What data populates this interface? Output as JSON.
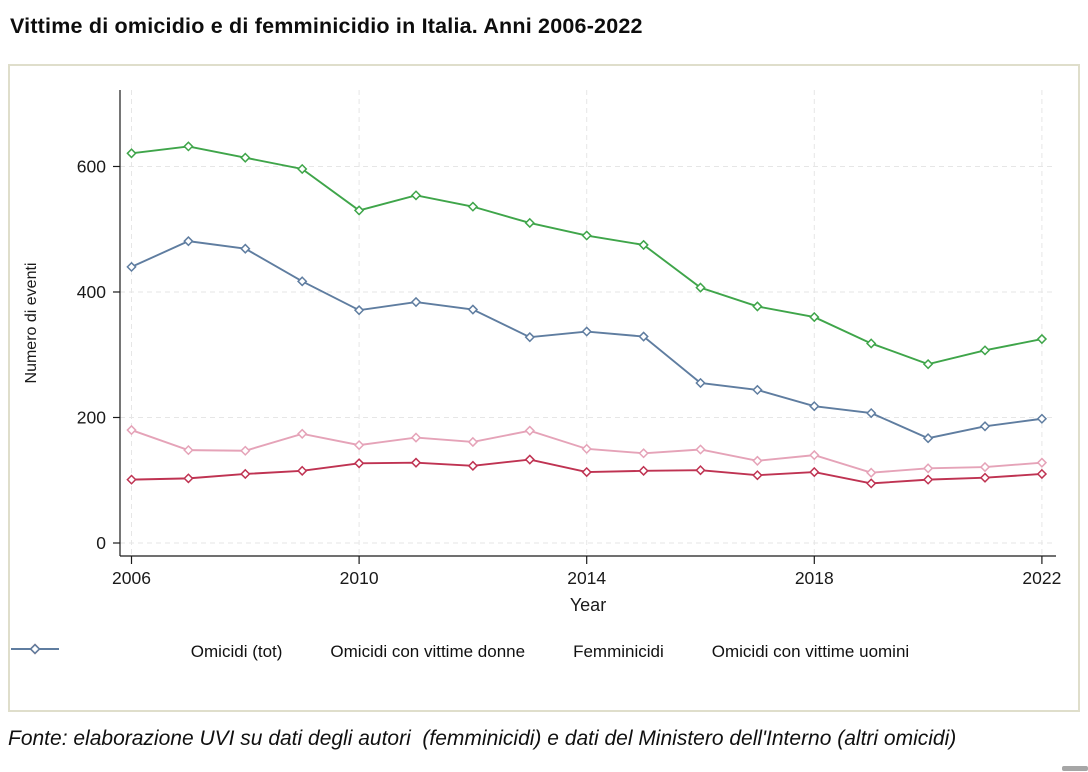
{
  "page": {
    "title": "Vittime di omicidio e di femminicidio in Italia. Anni 2006-2022",
    "footer": "Fonte: elaborazione UVI su dati degli autori  (femminicidi) e dati del Ministero dell'Interno (altri omicidi)"
  },
  "chart_data": {
    "type": "line",
    "title": "Vittime di omicidio e di femminicidio in Italia. Anni 2006-2022",
    "xlabel": "Year",
    "ylabel": "Numero di eventi",
    "x": [
      2006,
      2007,
      2008,
      2009,
      2010,
      2011,
      2012,
      2013,
      2014,
      2015,
      2016,
      2017,
      2018,
      2019,
      2020,
      2021,
      2022
    ],
    "x_ticks": [
      2006,
      2010,
      2014,
      2018,
      2022
    ],
    "y_ticks": [
      0,
      200,
      400,
      600
    ],
    "ylim": [
      0,
      720
    ],
    "grid": "dashed both axes",
    "legend_position": "bottom",
    "colors": {
      "grid": "#e6e6e6",
      "axis": "#1a1a1a",
      "card_border": "#dfdecb"
    },
    "series": [
      {
        "name": "Omicidi (tot)",
        "color": "#3fa54a",
        "values": [
          621,
          632,
          614,
          596,
          530,
          554,
          536,
          510,
          490,
          475,
          407,
          377,
          360,
          318,
          285,
          307,
          325
        ]
      },
      {
        "name": "Omicidi con vittime donne",
        "color": "#e5a3b8",
        "values": [
          180,
          148,
          147,
          174,
          156,
          168,
          161,
          179,
          150,
          143,
          149,
          131,
          140,
          112,
          119,
          121,
          128
        ]
      },
      {
        "name": "Femminicidi",
        "color": "#bf3352",
        "values": [
          101,
          103,
          110,
          115,
          127,
          128,
          123,
          133,
          113,
          115,
          116,
          108,
          113,
          95,
          101,
          104,
          110
        ]
      },
      {
        "name": "Omicidi con vittime uomini",
        "color": "#5f7da0",
        "values": [
          440,
          481,
          469,
          417,
          371,
          384,
          372,
          328,
          337,
          329,
          255,
          244,
          218,
          207,
          167,
          186,
          198
        ]
      }
    ]
  }
}
